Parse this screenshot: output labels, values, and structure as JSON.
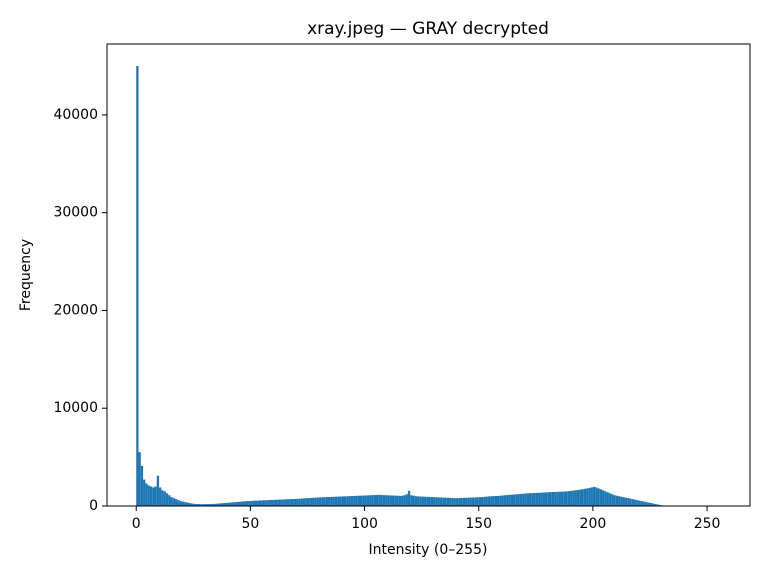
{
  "chart_data": {
    "type": "histogram",
    "title": "xray.jpeg — GRAY decrypted",
    "x_label": "Intensity (0–255)",
    "y_label": "Frequency",
    "color": "#1f77b4",
    "bins": [
      0,
      1,
      2,
      3,
      4,
      5,
      6,
      7,
      8,
      9,
      10,
      11,
      12,
      13,
      14,
      15,
      16,
      17,
      18,
      19,
      20,
      21,
      22,
      23,
      24,
      25,
      26,
      27,
      28,
      29,
      30,
      31,
      32,
      33,
      34,
      35,
      36,
      37,
      38,
      39,
      40,
      41,
      42,
      43,
      44,
      45,
      46,
      47,
      48,
      49,
      50,
      51,
      52,
      53,
      54,
      55,
      56,
      57,
      58,
      59,
      60,
      61,
      62,
      63,
      64,
      65,
      66,
      67,
      68,
      69,
      70,
      71,
      72,
      73,
      74,
      75,
      76,
      77,
      78,
      79,
      80,
      81,
      82,
      83,
      84,
      85,
      86,
      87,
      88,
      89,
      90,
      91,
      92,
      93,
      94,
      95,
      96,
      97,
      98,
      99,
      100,
      101,
      102,
      103,
      104,
      105,
      106,
      107,
      108,
      109,
      110,
      111,
      112,
      113,
      114,
      115,
      116,
      117,
      118,
      119,
      120,
      121,
      122,
      123,
      124,
      125,
      126,
      127,
      128,
      129,
      130,
      131,
      132,
      133,
      134,
      135,
      136,
      137,
      138,
      139,
      140,
      141,
      142,
      143,
      144,
      145,
      146,
      147,
      148,
      149,
      150,
      151,
      152,
      153,
      154,
      155,
      156,
      157,
      158,
      159,
      160,
      161,
      162,
      163,
      164,
      165,
      166,
      167,
      168,
      169,
      170,
      171,
      172,
      173,
      174,
      175,
      176,
      177,
      178,
      179,
      180,
      181,
      182,
      183,
      184,
      185,
      186,
      187,
      188,
      189,
      190,
      191,
      192,
      193,
      194,
      195,
      196,
      197,
      198,
      199,
      200,
      201,
      202,
      203,
      204,
      205,
      206,
      207,
      208,
      209,
      210,
      211,
      212,
      213,
      214,
      215,
      216,
      217,
      218,
      219,
      220,
      221,
      222,
      223,
      224,
      225,
      226,
      227,
      228,
      229,
      230,
      231,
      232,
      233,
      234,
      235,
      236,
      237,
      238,
      239,
      240,
      241,
      242,
      243,
      244,
      245,
      246,
      247,
      248,
      249,
      250,
      251,
      252,
      253,
      254,
      255,
      256
    ],
    "values": [
      45000,
      5500,
      4100,
      2700,
      2300,
      2100,
      2000,
      1900,
      2000,
      3100,
      1900,
      1600,
      1500,
      1300,
      1100,
      900,
      800,
      700,
      600,
      500,
      450,
      400,
      350,
      300,
      250,
      220,
      200,
      200,
      190,
      190,
      190,
      200,
      200,
      210,
      220,
      240,
      260,
      280,
      300,
      320,
      340,
      360,
      380,
      400,
      420,
      440,
      460,
      480,
      500,
      510,
      520,
      540,
      550,
      560,
      570,
      580,
      590,
      600,
      610,
      620,
      630,
      640,
      650,
      660,
      670,
      680,
      690,
      700,
      710,
      720,
      730,
      740,
      760,
      780,
      800,
      810,
      820,
      840,
      850,
      870,
      880,
      890,
      900,
      910,
      920,
      930,
      940,
      950,
      960,
      970,
      980,
      990,
      1000,
      1010,
      1020,
      1030,
      1040,
      1050,
      1060,
      1070,
      1080,
      1090,
      1100,
      1110,
      1120,
      1130,
      1140,
      1120,
      1110,
      1100,
      1090,
      1080,
      1070,
      1060,
      1050,
      1040,
      1050,
      1100,
      1200,
      1550,
      1100,
      1050,
      1000,
      980,
      970,
      960,
      950,
      940,
      930,
      920,
      900,
      890,
      880,
      870,
      860,
      850,
      840,
      830,
      820,
      810,
      800,
      810,
      820,
      830,
      840,
      850,
      860,
      870,
      880,
      890,
      900,
      920,
      940,
      960,
      980,
      1000,
      1010,
      1020,
      1030,
      1050,
      1080,
      1100,
      1120,
      1140,
      1160,
      1180,
      1200,
      1220,
      1240,
      1260,
      1280,
      1300,
      1310,
      1320,
      1330,
      1340,
      1350,
      1360,
      1380,
      1400,
      1410,
      1420,
      1430,
      1440,
      1450,
      1460,
      1470,
      1480,
      1500,
      1520,
      1550,
      1580,
      1610,
      1640,
      1680,
      1720,
      1760,
      1800,
      1850,
      1900,
      1950,
      1900,
      1800,
      1700,
      1600,
      1500,
      1400,
      1300,
      1200,
      1100,
      1050,
      1000,
      950,
      900,
      850,
      800,
      750,
      700,
      650,
      600,
      550,
      500,
      450,
      400,
      350,
      300,
      250,
      200,
      150,
      100,
      60,
      40,
      20,
      10,
      5,
      0,
      0,
      0,
      0,
      0,
      0,
      0,
      0,
      0,
      0,
      0,
      0,
      0,
      0,
      0,
      0,
      0,
      0,
      0,
      0,
      0
    ],
    "xlim": [
      -12.8,
      268.8
    ],
    "ylim": [
      0,
      47250
    ],
    "xticks": [
      0,
      50,
      100,
      150,
      200,
      250
    ],
    "yticks": [
      0,
      10000,
      20000,
      30000,
      40000
    ]
  }
}
